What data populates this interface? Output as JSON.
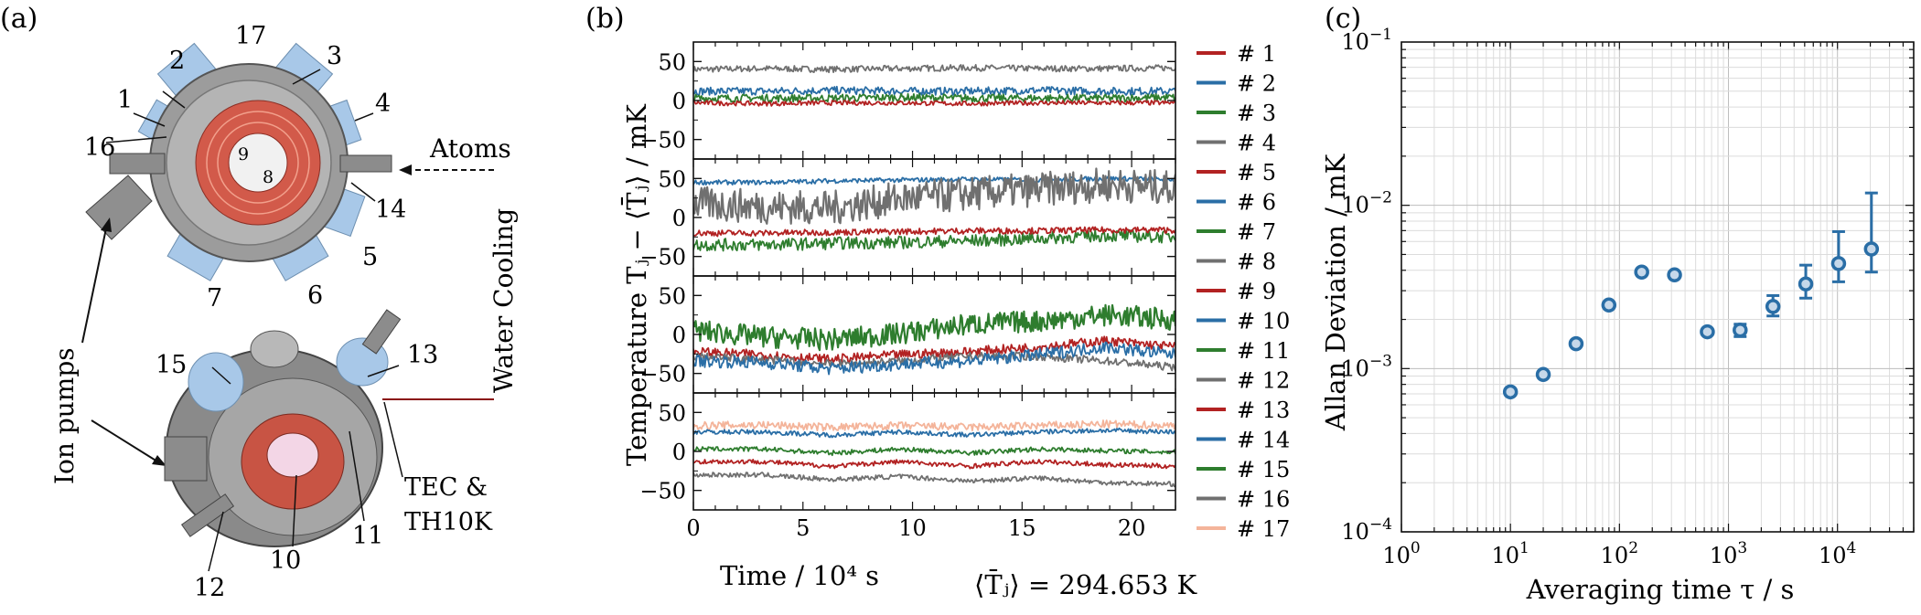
{
  "panel_a": {
    "label": "(a)",
    "numbers": [
      "1",
      "2",
      "3",
      "4",
      "5",
      "6",
      "7",
      "8",
      "9",
      "10",
      "11",
      "12",
      "13",
      "14",
      "15",
      "16",
      "17"
    ],
    "annotations": {
      "atoms": "Atoms",
      "ion_pumps": "Ion pumps",
      "water_cooling": "Water Cooling",
      "tec_line1": "TEC &",
      "tec_line2": "TH10K"
    },
    "colors": {
      "chamber": "#9a9a9a",
      "coil": "#d9534f",
      "heater": "#e07040",
      "port": "#a8c8e8"
    }
  },
  "chart_data": [
    {
      "type": "line",
      "panel_label": "(b)",
      "xlabel": "Time / 10⁴ s",
      "ylabel": "Temperature Tⱼ − ⟨T̄ⱼ⟩ / mK",
      "mean_label": "⟨T̄ⱼ⟩ = 294.653 K",
      "xlim": [
        0,
        22
      ],
      "xticks": [
        "0",
        "5",
        "10",
        "15",
        "20"
      ],
      "ylim": [
        -75,
        75
      ],
      "yticks": [
        "50",
        "0",
        "−50"
      ],
      "grid": false,
      "legend_position": "right",
      "legend": [
        {
          "name": "# 1",
          "color": "#b22222"
        },
        {
          "name": "# 2",
          "color": "#2a6ea6"
        },
        {
          "name": "# 3",
          "color": "#2e7d2e"
        },
        {
          "name": "# 4",
          "color": "#707070"
        },
        {
          "name": "# 5",
          "color": "#b22222"
        },
        {
          "name": "# 6",
          "color": "#2a6ea6"
        },
        {
          "name": "# 7",
          "color": "#2e7d2e"
        },
        {
          "name": "# 8",
          "color": "#707070"
        },
        {
          "name": "# 9",
          "color": "#b22222"
        },
        {
          "name": "# 10",
          "color": "#2a6ea6"
        },
        {
          "name": "# 11",
          "color": "#2e7d2e"
        },
        {
          "name": "# 12",
          "color": "#707070"
        },
        {
          "name": "# 13",
          "color": "#b22222"
        },
        {
          "name": "# 14",
          "color": "#2a6ea6"
        },
        {
          "name": "# 15",
          "color": "#2e7d2e"
        },
        {
          "name": "# 16",
          "color": "#707070"
        },
        {
          "name": "# 17",
          "color": "#f4b49a"
        }
      ],
      "subpanels": [
        {
          "series": [
            {
              "name": "# 4",
              "mean": 40,
              "noise": 4,
              "wander": [
                0,
                1,
                0,
                1,
                2,
                1,
                1,
                2
              ]
            },
            {
              "name": "# 2",
              "mean": 12,
              "noise": 5,
              "wander": [
                0,
                0,
                1,
                0,
                0,
                1,
                0,
                0
              ]
            },
            {
              "name": "# 3",
              "mean": 3,
              "noise": 5,
              "wander": [
                0,
                0,
                0,
                1,
                0,
                0,
                0,
                1
              ]
            },
            {
              "name": "# 1",
              "mean": -3,
              "noise": 3,
              "wander": [
                0,
                -1,
                0,
                0,
                -1,
                0,
                0,
                0
              ]
            }
          ]
        },
        {
          "series": [
            {
              "name": "# 6",
              "mean": 45,
              "noise": 3,
              "wander": [
                0,
                0,
                2,
                3,
                4,
                3,
                5,
                4
              ]
            },
            {
              "name": "# 8",
              "mean": 18,
              "noise": 22,
              "wander": [
                0,
                -4,
                -6,
                6,
                12,
                18,
                24,
                20
              ]
            },
            {
              "name": "# 7",
              "mean": -35,
              "noise": 8,
              "wander": [
                0,
                0,
                2,
                3,
                5,
                8,
                12,
                10
              ]
            },
            {
              "name": "# 5",
              "mean": -20,
              "noise": 4,
              "wander": [
                0,
                0,
                1,
                2,
                3,
                3,
                4,
                4
              ]
            }
          ]
        },
        {
          "series": [
            {
              "name": "# 11",
              "mean": 5,
              "noise": 14,
              "wander": [
                0,
                -8,
                -12,
                -4,
                8,
                12,
                20,
                14
              ]
            },
            {
              "name": "# 9",
              "mean": -22,
              "noise": 6,
              "wander": [
                0,
                -4,
                -10,
                -4,
                0,
                6,
                14,
                6
              ]
            },
            {
              "name": "# 12",
              "mean": -28,
              "noise": 5,
              "wander": [
                0,
                -4,
                -10,
                -6,
                0,
                0,
                -6,
                -14
              ]
            },
            {
              "name": "# 10",
              "mean": -34,
              "noise": 8,
              "wander": [
                0,
                -2,
                -10,
                -4,
                0,
                8,
                18,
                8
              ]
            }
          ]
        },
        {
          "series": [
            {
              "name": "# 17",
              "mean": 33,
              "noise": 5,
              "wander": [
                0,
                1,
                -2,
                0,
                -2,
                0,
                2,
                0
              ]
            },
            {
              "name": "# 14",
              "mean": 25,
              "noise": 3,
              "wander": [
                0,
                0,
                -4,
                0,
                -4,
                0,
                2,
                0
              ]
            },
            {
              "name": "# 15",
              "mean": 3,
              "noise": 3,
              "wander": [
                0,
                0,
                -5,
                0,
                -5,
                0,
                -2,
                -4
              ]
            },
            {
              "name": "# 13",
              "mean": -13,
              "noise": 3,
              "wander": [
                0,
                0,
                -6,
                0,
                -6,
                0,
                -4,
                -6
              ]
            },
            {
              "name": "# 16",
              "mean": -30,
              "noise": 3,
              "wander": [
                0,
                0,
                -6,
                -2,
                -8,
                -4,
                -10,
                -12
              ]
            }
          ]
        }
      ]
    },
    {
      "type": "scatter",
      "panel_label": "(c)",
      "xlabel": "Averaging time τ / s",
      "ylabel": "Allan Deviation / mK",
      "x_scale": "log",
      "y_scale": "log",
      "xlim": [
        1,
        50000
      ],
      "ylim": [
        0.0001,
        0.1
      ],
      "xticks": [
        {
          "b": "10",
          "e": "0"
        },
        {
          "b": "10",
          "e": "1"
        },
        {
          "b": "10",
          "e": "2"
        },
        {
          "b": "10",
          "e": "3"
        },
        {
          "b": "10",
          "e": "4"
        }
      ],
      "yticks": [
        {
          "b": "10",
          "e": "−1"
        },
        {
          "b": "10",
          "e": "−2"
        },
        {
          "b": "10",
          "e": "−3"
        },
        {
          "b": "10",
          "e": "−4"
        }
      ],
      "grid": true,
      "color": "#2a6ea6",
      "x": [
        10,
        20,
        40,
        80,
        160,
        320,
        640,
        1280,
        2560,
        5120,
        10240,
        20480
      ],
      "y": [
        0.00072,
        0.00092,
        0.00142,
        0.00245,
        0.0039,
        0.00375,
        0.00168,
        0.00172,
        0.0024,
        0.0033,
        0.0044,
        0.0054
      ],
      "err_low": [
        0,
        0,
        0,
        0,
        0,
        0,
        0,
        0.00015,
        0.0003,
        0.0006,
        0.001,
        0.0015
      ],
      "err_high": [
        0,
        0,
        0,
        0,
        0,
        0,
        0,
        0.00015,
        0.0004,
        0.001,
        0.0025,
        0.0065
      ]
    }
  ]
}
